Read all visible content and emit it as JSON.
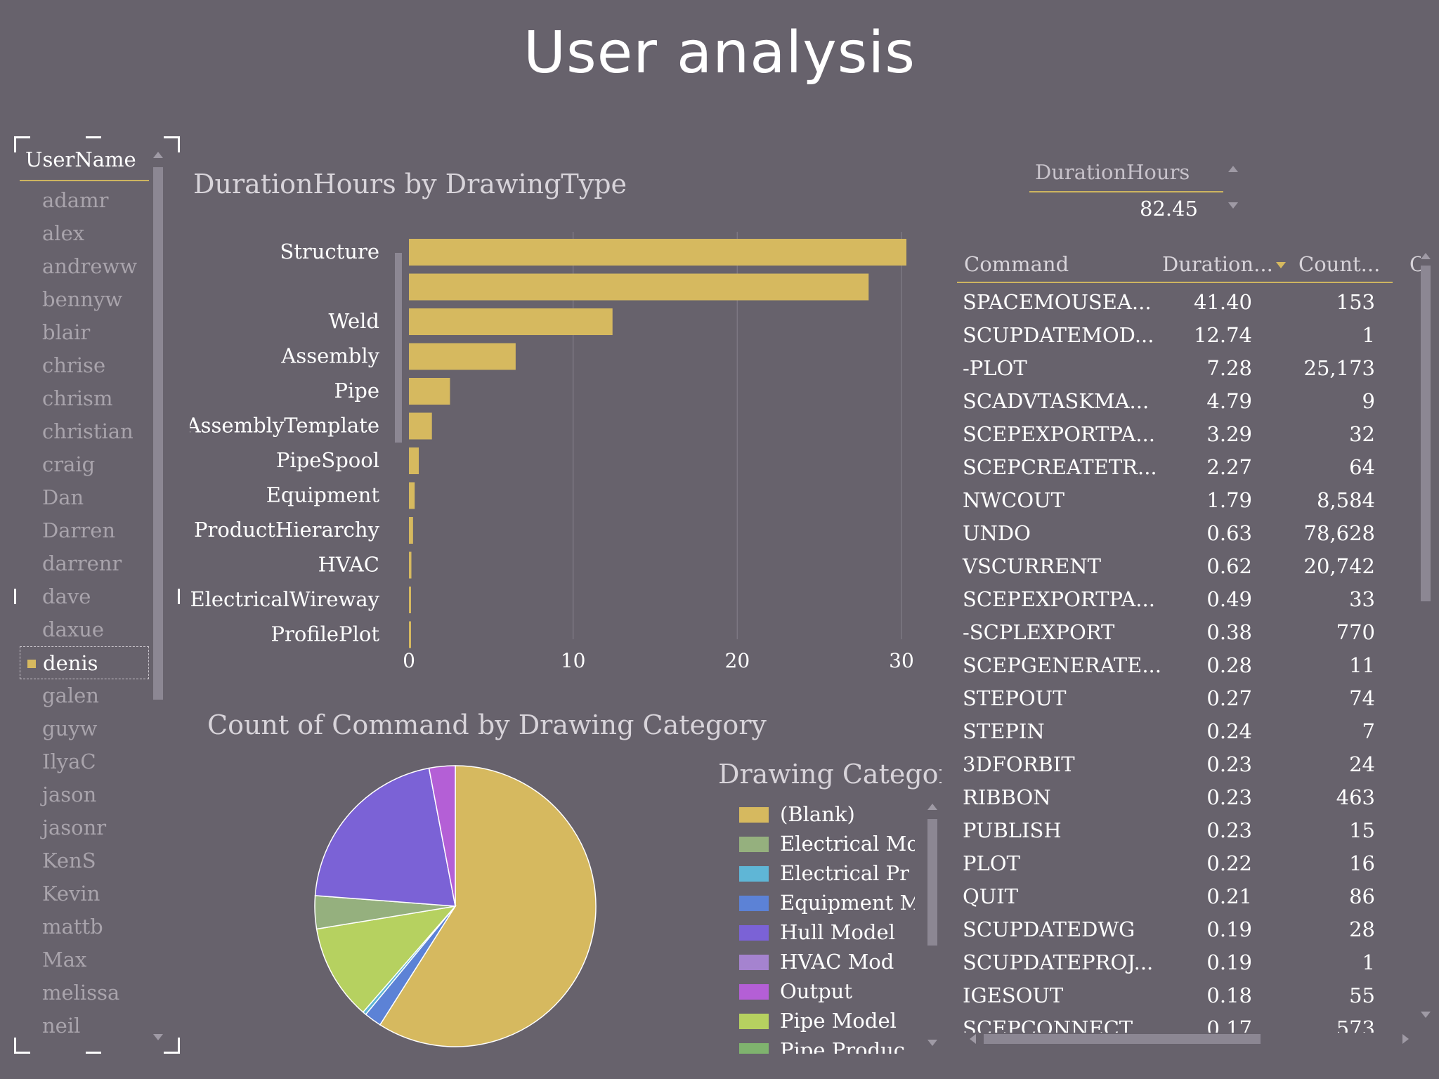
{
  "title": "User analysis",
  "slicer": {
    "header": "UserName",
    "items": [
      {
        "label": "adamr",
        "selected": false
      },
      {
        "label": "alex",
        "selected": false
      },
      {
        "label": "andreww",
        "selected": false
      },
      {
        "label": "bennyw",
        "selected": false
      },
      {
        "label": "blair",
        "selected": false
      },
      {
        "label": "chrise",
        "selected": false
      },
      {
        "label": "chrism",
        "selected": false
      },
      {
        "label": "christian",
        "selected": false
      },
      {
        "label": "craig",
        "selected": false
      },
      {
        "label": "Dan",
        "selected": false
      },
      {
        "label": "Darren",
        "selected": false
      },
      {
        "label": "darrenr",
        "selected": false
      },
      {
        "label": "dave",
        "selected": false
      },
      {
        "label": "daxue",
        "selected": false
      },
      {
        "label": "denis",
        "selected": true
      },
      {
        "label": "galen",
        "selected": false
      },
      {
        "label": "guyw",
        "selected": false
      },
      {
        "label": "IlyaC",
        "selected": false
      },
      {
        "label": "jason",
        "selected": false
      },
      {
        "label": "jasonr",
        "selected": false
      },
      {
        "label": "KenS",
        "selected": false
      },
      {
        "label": "Kevin",
        "selected": false
      },
      {
        "label": "mattb",
        "selected": false
      },
      {
        "label": "Max",
        "selected": false
      },
      {
        "label": "melissa",
        "selected": false
      },
      {
        "label": "neil",
        "selected": false
      }
    ]
  },
  "bar_chart": {
    "title": "DurationHours by DrawingType"
  },
  "pie_chart": {
    "title": "Count of Command by Drawing Category",
    "legend_title": "Drawing Category",
    "legend_items": [
      {
        "label": "(Blank)",
        "color": "#d6b95f"
      },
      {
        "label": "Electrical Mo",
        "color": "#95b07e"
      },
      {
        "label": "Electrical Pr",
        "color": "#5fb6d6"
      },
      {
        "label": "Equipment M",
        "color": "#5c82d6"
      },
      {
        "label": "Hull Model",
        "color": "#7b62d6"
      },
      {
        "label": "HVAC Mod",
        "color": "#a583cf"
      },
      {
        "label": "Output",
        "color": "#b45fd6"
      },
      {
        "label": "Pipe Model",
        "color": "#b6d160"
      },
      {
        "label": "Pipe Produc",
        "color": "#7fb36e"
      }
    ]
  },
  "chart_data": [
    {
      "type": "bar",
      "orientation": "horizontal",
      "title": "DurationHours by DrawingType",
      "categories": [
        "Structure",
        "",
        "Weld",
        "Assembly",
        "Pipe",
        "AssemblyTemplate",
        "PipeSpool",
        "Equipment",
        "ProductHierarchy",
        "HVAC",
        "ElectricalWireway",
        "ProfilePlot"
      ],
      "values": [
        30.3,
        28.0,
        12.4,
        6.5,
        2.5,
        1.4,
        0.6,
        0.35,
        0.25,
        0.15,
        0.1,
        0.1
      ],
      "xlim": [
        0,
        30
      ],
      "xticks": [
        0,
        10,
        20,
        30
      ],
      "grid": true,
      "color": "#d6b95f"
    },
    {
      "type": "pie",
      "title": "Count of Command by Drawing Category",
      "slices": [
        {
          "label": "(Blank)",
          "value": 59.0,
          "color": "#d6b95f"
        },
        {
          "label": "Equipment M",
          "value": 2.0,
          "color": "#5c82d6"
        },
        {
          "label": "Electrical Pr",
          "value": 0.4,
          "color": "#5fb6d6"
        },
        {
          "label": "Pipe Model",
          "value": 11.0,
          "color": "#b6d160"
        },
        {
          "label": "Electrical Mo",
          "value": 3.8,
          "color": "#95b07e"
        },
        {
          "label": "Hull Model",
          "value": 20.8,
          "color": "#7b62d6"
        },
        {
          "label": "Output",
          "value": 3.0,
          "color": "#b45fd6"
        }
      ]
    }
  ],
  "kpi": {
    "label": "DurationHours",
    "value": "82.45"
  },
  "table": {
    "headers": {
      "command": "Command",
      "duration": "Duration...",
      "count": "Count..."
    },
    "rows": [
      {
        "command": "SPACEMOUSEA...",
        "duration": "41.40",
        "count": "153"
      },
      {
        "command": "SCUPDATEMOD...",
        "duration": "12.74",
        "count": "1"
      },
      {
        "command": "-PLOT",
        "duration": "7.28",
        "count": "25,173"
      },
      {
        "command": "SCADVTASKMA...",
        "duration": "4.79",
        "count": "9"
      },
      {
        "command": "SCEPEXPORTPA...",
        "duration": "3.29",
        "count": "32"
      },
      {
        "command": "SCEPCREATETR...",
        "duration": "2.27",
        "count": "64"
      },
      {
        "command": "NWCOUT",
        "duration": "1.79",
        "count": "8,584"
      },
      {
        "command": "UNDO",
        "duration": "0.63",
        "count": "78,628"
      },
      {
        "command": "VSCURRENT",
        "duration": "0.62",
        "count": "20,742"
      },
      {
        "command": "SCEPEXPORTPA...",
        "duration": "0.49",
        "count": "33"
      },
      {
        "command": "-SCPLEXPORT",
        "duration": "0.38",
        "count": "770"
      },
      {
        "command": "SCEPGENERATE...",
        "duration": "0.28",
        "count": "11"
      },
      {
        "command": "STEPOUT",
        "duration": "0.27",
        "count": "74"
      },
      {
        "command": "STEPIN",
        "duration": "0.24",
        "count": "7"
      },
      {
        "command": "3DFORBIT",
        "duration": "0.23",
        "count": "24"
      },
      {
        "command": "RIBBON",
        "duration": "0.23",
        "count": "463"
      },
      {
        "command": "PUBLISH",
        "duration": "0.23",
        "count": "15"
      },
      {
        "command": "PLOT",
        "duration": "0.22",
        "count": "16"
      },
      {
        "command": "QUIT",
        "duration": "0.21",
        "count": "86"
      },
      {
        "command": "SCUPDATEDWG",
        "duration": "0.19",
        "count": "28"
      },
      {
        "command": "SCUPDATEPROJ...",
        "duration": "0.19",
        "count": "1"
      },
      {
        "command": "IGESOUT",
        "duration": "0.18",
        "count": "55"
      },
      {
        "command": "SCEPCONNECT",
        "duration": "0.17",
        "count": "573"
      }
    ]
  }
}
